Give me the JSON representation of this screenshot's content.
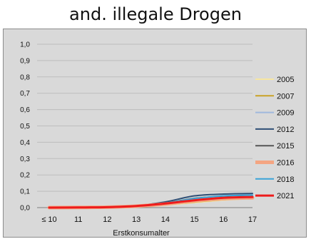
{
  "chart_data": {
    "type": "line",
    "title": "and. illegale Drogen",
    "xlabel": "Erstkonsumalter",
    "ylabel": "",
    "x": [
      "≤ 10",
      "11",
      "12",
      "13",
      "14",
      "15",
      "16",
      "17"
    ],
    "ylim": [
      0,
      1.0
    ],
    "yticks": [
      "0,0",
      "0,1",
      "0,2",
      "0,3",
      "0,4",
      "0,5",
      "0,6",
      "0,7",
      "0,8",
      "0,9",
      "1,0"
    ],
    "grid": true,
    "legend": "right",
    "series": [
      {
        "name": "2005",
        "color": "#f7e6a0",
        "width": 1.5,
        "values": [
          0.0,
          0.001,
          0.003,
          0.007,
          0.015,
          0.03,
          0.045,
          0.055
        ]
      },
      {
        "name": "2007",
        "color": "#c9a227",
        "width": 1.5,
        "values": [
          0.0,
          0.001,
          0.003,
          0.008,
          0.017,
          0.033,
          0.048,
          0.058
        ]
      },
      {
        "name": "2009",
        "color": "#9fb8dd",
        "width": 1.5,
        "values": [
          0.0,
          0.001,
          0.004,
          0.01,
          0.022,
          0.045,
          0.06,
          0.068
        ]
      },
      {
        "name": "2012",
        "color": "#2f4f76",
        "width": 2,
        "values": [
          0.0,
          0.001,
          0.004,
          0.012,
          0.035,
          0.072,
          0.083,
          0.087
        ]
      },
      {
        "name": "2015",
        "color": "#555555",
        "width": 1.5,
        "values": [
          0.0,
          0.001,
          0.004,
          0.011,
          0.028,
          0.058,
          0.07,
          0.075
        ]
      },
      {
        "name": "2016",
        "color": "#f4a582",
        "width": 5,
        "values": [
          0.0,
          0.001,
          0.003,
          0.009,
          0.022,
          0.042,
          0.055,
          0.06
        ]
      },
      {
        "name": "2018",
        "color": "#3aa3d8",
        "width": 2,
        "values": [
          0.0,
          0.001,
          0.004,
          0.011,
          0.027,
          0.055,
          0.072,
          0.077
        ]
      },
      {
        "name": "2021",
        "color": "#ee1c1c",
        "width": 3,
        "values": [
          0.0,
          0.001,
          0.003,
          0.01,
          0.025,
          0.045,
          0.06,
          0.065
        ]
      }
    ]
  }
}
